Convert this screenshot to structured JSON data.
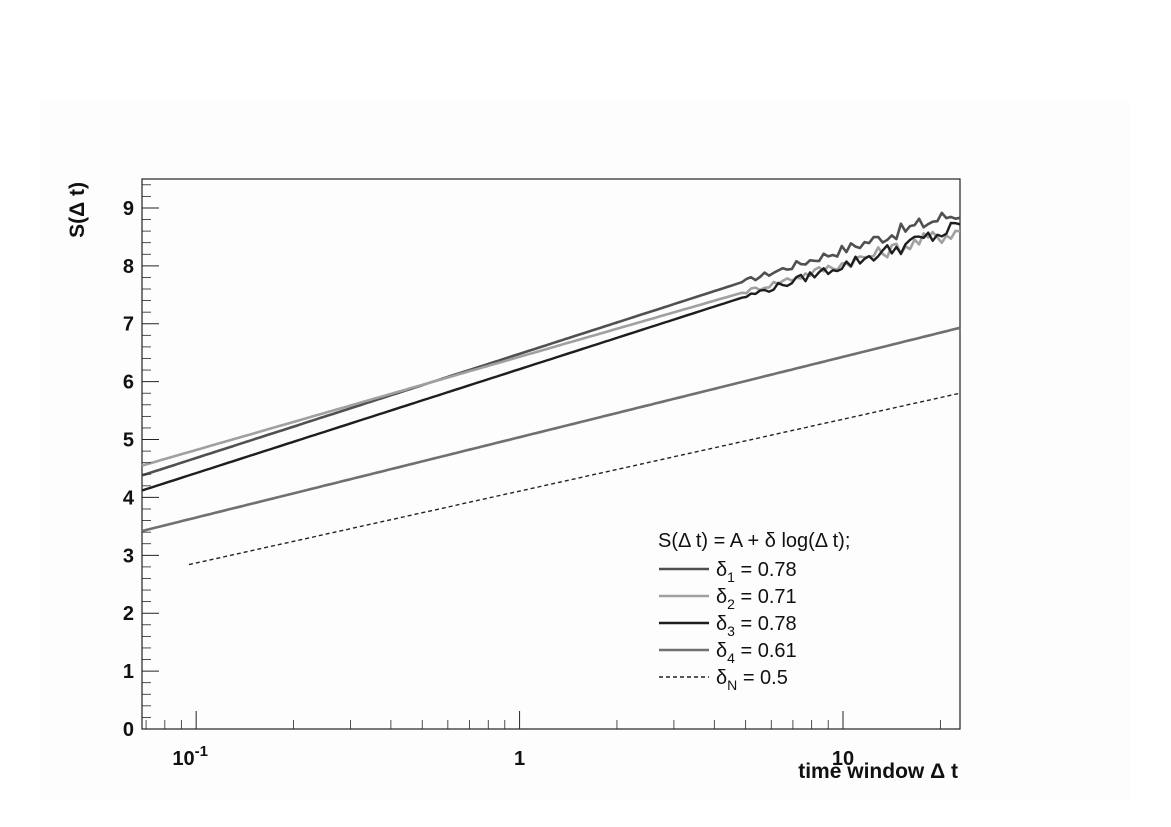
{
  "chart_data": {
    "type": "line",
    "xscale": "log",
    "xlim": [
      0.068,
      23
    ],
    "ylim": [
      0,
      9.5
    ],
    "xlabel": "time window  Δ t",
    "ylabel": "S(Δ t)",
    "x_ticks": [
      {
        "value": 0.1,
        "base": "10",
        "exp": "-1"
      },
      {
        "value": 1,
        "label": "1"
      },
      {
        "value": 10,
        "label": "10"
      }
    ],
    "y_ticks": [
      "0",
      "1",
      "2",
      "3",
      "4",
      "5",
      "6",
      "7",
      "8",
      "9"
    ],
    "legend": {
      "title": "S(Δ t) = A + δ log(Δ t);",
      "entries": [
        {
          "symbol": "δ",
          "sub": "1",
          "text": " = 0.78"
        },
        {
          "symbol": "δ",
          "sub": "2",
          "text": " = 0.71"
        },
        {
          "symbol": "δ",
          "sub": "3",
          "text": " = 0.78"
        },
        {
          "symbol": "δ",
          "sub": "4",
          "text": " = 0.61"
        },
        {
          "symbol": "δ",
          "sub": "N",
          "text": " = 0.5"
        }
      ]
    },
    "series": [
      {
        "color": "#505050",
        "width": 2.6,
        "dash": "",
        "x_start": 0.068,
        "x_end": 23,
        "y_start": 4.38,
        "y_end": 8.93,
        "noise": true
      },
      {
        "color": "#a0a0a0",
        "width": 2.6,
        "dash": "",
        "x_start": 0.068,
        "x_end": 23,
        "y_start": 4.55,
        "y_end": 8.62,
        "noise": true
      },
      {
        "color": "#1e1e1e",
        "width": 2.4,
        "dash": "",
        "x_start": 0.068,
        "x_end": 23,
        "y_start": 4.12,
        "y_end": 8.66,
        "noise": true
      },
      {
        "color": "#707070",
        "width": 2.6,
        "dash": "",
        "x_start": 0.068,
        "x_end": 23,
        "y_start": 3.42,
        "y_end": 6.93,
        "noise": false
      },
      {
        "color": "#222222",
        "width": 1.4,
        "dash": "4,3",
        "x_start": 0.095,
        "x_end": 23,
        "y_start": 2.84,
        "y_end": 5.8,
        "noise": false
      }
    ]
  }
}
